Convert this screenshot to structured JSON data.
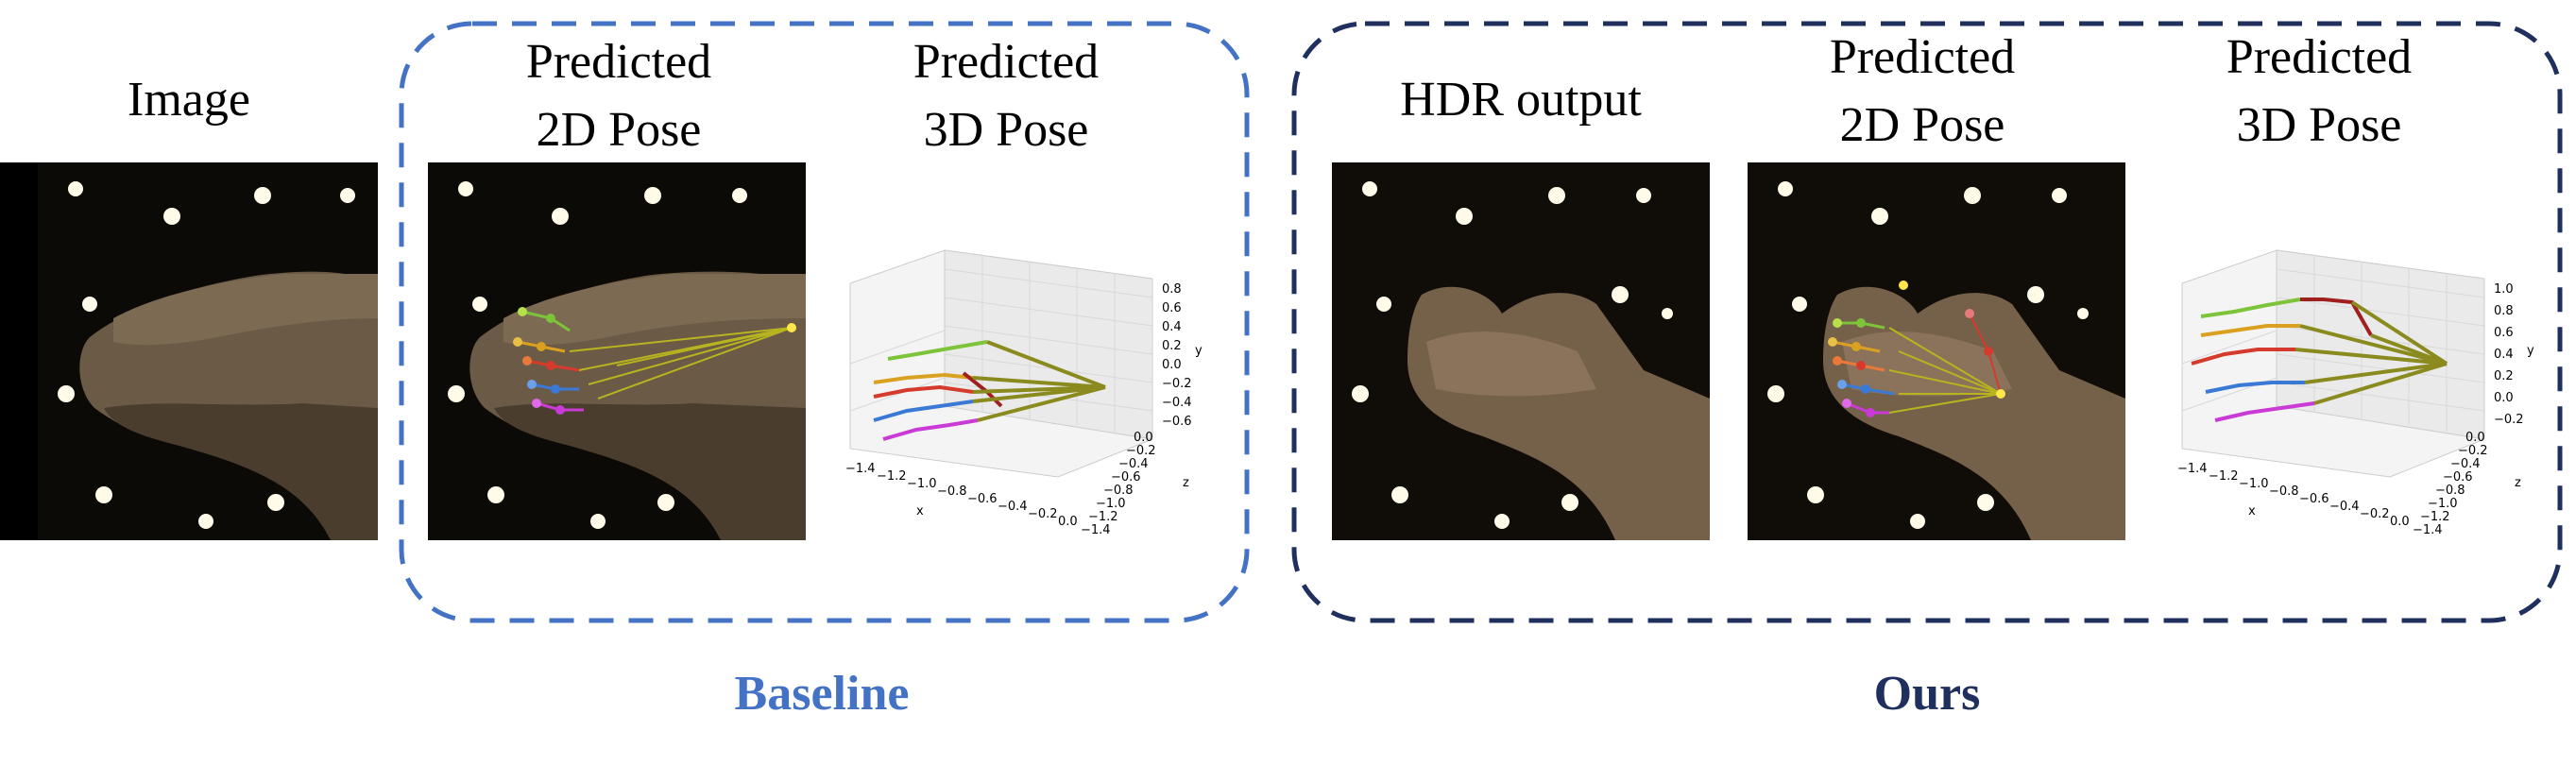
{
  "captions": {
    "image": "Image",
    "baseline_2d": "Predicted\n2D Pose",
    "baseline_3d": "Predicted\n3D Pose",
    "hdr": "HDR output",
    "ours_2d": "Predicted\n2D Pose",
    "ours_3d": "Predicted\n3D Pose"
  },
  "groups": {
    "baseline": {
      "label": "Baseline",
      "color": "#4472c4"
    },
    "ours": {
      "label": "Ours",
      "color": "#1f2f5e"
    }
  },
  "plots": {
    "baseline": {
      "y_ticks": [
        "0.8",
        "0.6",
        "0.4",
        "0.2",
        "0.0",
        "−0.2",
        "−0.4",
        "−0.6"
      ],
      "z_ticks": [
        "0.0",
        "−0.2",
        "−0.4",
        "−0.6",
        "−0.8",
        "−1.0",
        "−1.2",
        "−1.4"
      ],
      "x_ticks": [
        "−1.4",
        "−1.2",
        "−1.0",
        "−0.8",
        "−0.6",
        "−0.4",
        "−0.2",
        "0.0"
      ],
      "x_label": "x",
      "y_label": "y",
      "z_label": "z"
    },
    "ours": {
      "y_ticks": [
        "1.0",
        "0.8",
        "0.6",
        "0.4",
        "0.2",
        "0.0",
        "−0.2"
      ],
      "z_ticks": [
        "0.0",
        "−0.2",
        "−0.4",
        "−0.6",
        "−0.8",
        "−1.0",
        "−1.2",
        "−1.4"
      ],
      "x_ticks": [
        "−1.4",
        "−1.2",
        "−1.0",
        "−0.8",
        "−0.6",
        "−0.4",
        "−0.2",
        "0.0"
      ],
      "x_label": "x",
      "y_label": "y",
      "z_label": "z"
    }
  },
  "colors": {
    "finger_thumb": "#d63a2c",
    "finger_index": "#3a7ad6",
    "finger_middle": "#d9a11f",
    "finger_ring": "#7dc43a",
    "finger_pinky": "#c93ad6",
    "bone": "#8a8a1f"
  }
}
